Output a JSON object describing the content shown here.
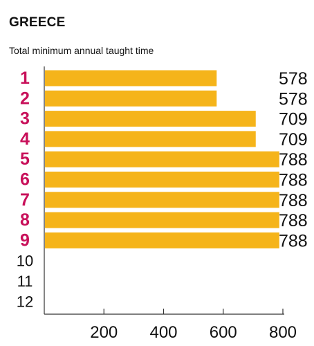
{
  "header": {
    "title": "GREECE",
    "subtitle": "Total minimum annual taught time"
  },
  "chart_data": {
    "type": "bar",
    "orientation": "horizontal",
    "title": "GREECE",
    "subtitle": "Total minimum annual taught time",
    "categories": [
      "1",
      "2",
      "3",
      "4",
      "5",
      "6",
      "7",
      "8",
      "9",
      "10",
      "11",
      "12"
    ],
    "values": [
      578,
      578,
      709,
      709,
      788,
      788,
      788,
      788,
      788,
      null,
      null,
      null
    ],
    "value_labels": [
      "578",
      "578",
      "709",
      "709",
      "788",
      "788",
      "788",
      "788",
      "788",
      "",
      "",
      ""
    ],
    "xticks": [
      200,
      400,
      600,
      800
    ],
    "xtick_labels": [
      "200",
      "400",
      "600",
      "800"
    ],
    "xlim": [
      0,
      800
    ],
    "grid": false,
    "legend": "none",
    "colors": {
      "bar": "#F5B41A",
      "highlight_category": "#C8105A",
      "plain_category": "#111111",
      "axis": "#333333"
    }
  }
}
